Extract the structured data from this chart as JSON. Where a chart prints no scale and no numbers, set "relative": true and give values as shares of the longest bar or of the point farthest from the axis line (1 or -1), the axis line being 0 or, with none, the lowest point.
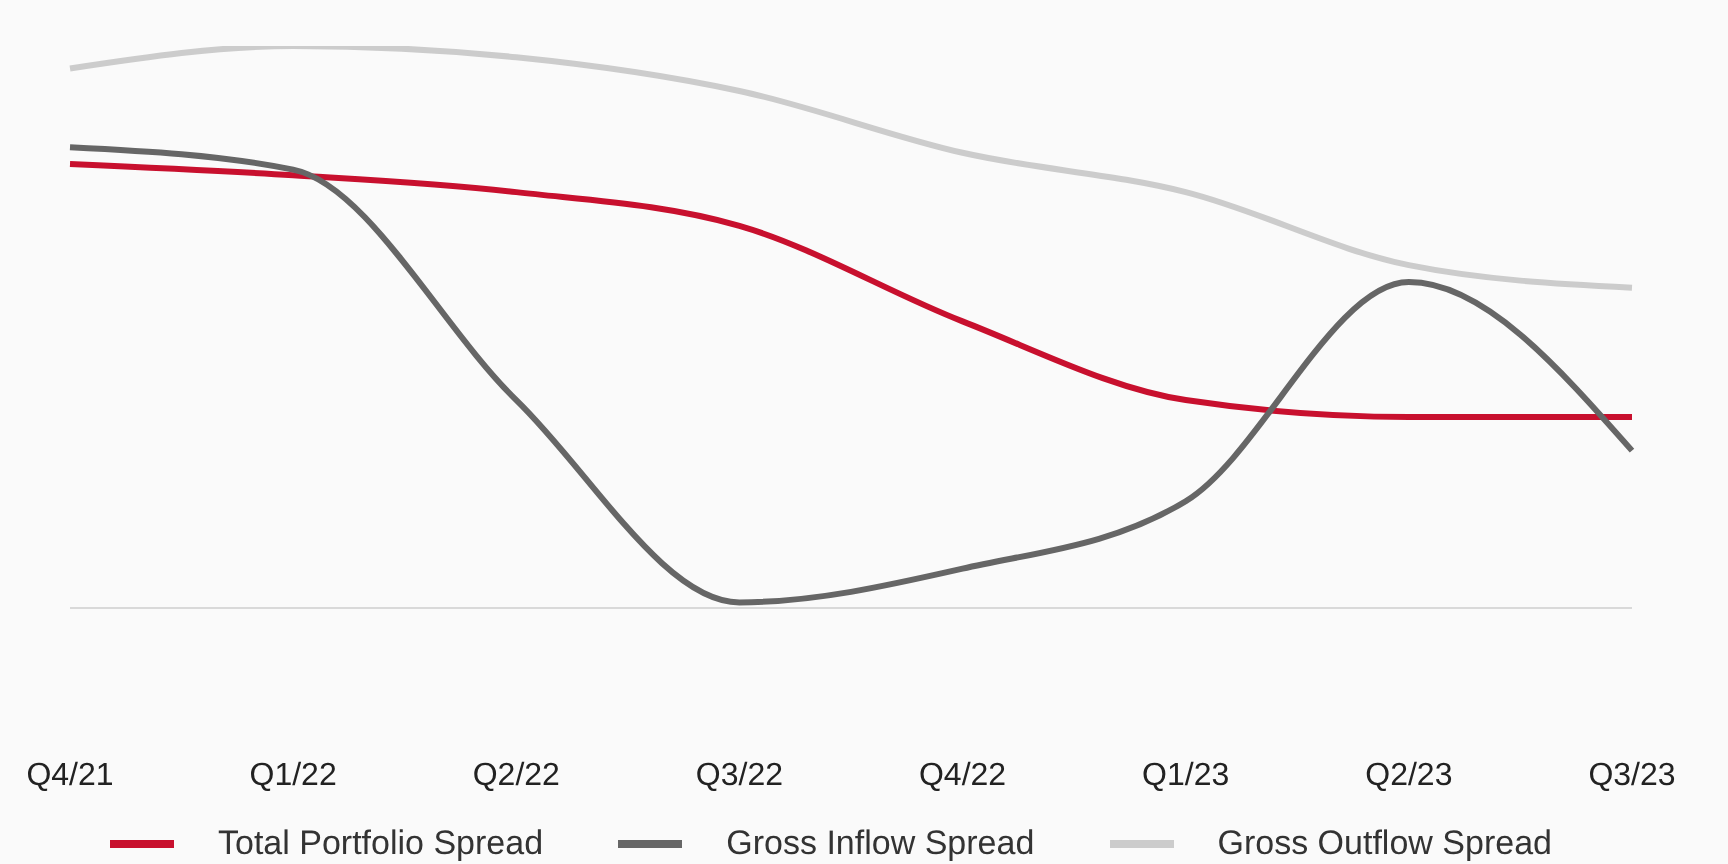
{
  "chart_data": {
    "type": "line",
    "relative": true,
    "categories": [
      "Q4/21",
      "Q1/22",
      "Q2/22",
      "Q3/22",
      "Q4/22",
      "Q1/23",
      "Q2/23",
      "Q3/23"
    ],
    "series": [
      {
        "name": "Total Portfolio Spread",
        "color": "#c8102e",
        "values": [
          0.79,
          0.77,
          0.74,
          0.68,
          0.51,
          0.37,
          0.34,
          0.34
        ]
      },
      {
        "name": "Gross Inflow Spread",
        "color": "#666666",
        "values": [
          0.82,
          0.78,
          0.37,
          0.01,
          0.07,
          0.19,
          0.58,
          0.28
        ]
      },
      {
        "name": "Gross Outflow Spread",
        "color": "#cccccc",
        "values": [
          0.96,
          1,
          0.98,
          0.92,
          0.81,
          0.74,
          0.61,
          0.57
        ]
      }
    ],
    "legend": "bottom",
    "marker": "none",
    "grid": false
  }
}
